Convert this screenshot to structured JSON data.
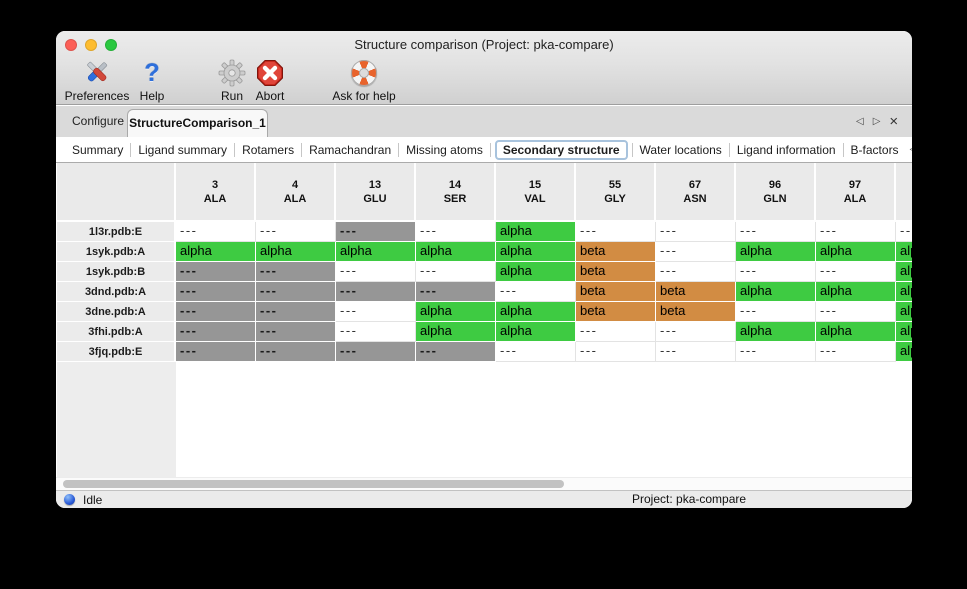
{
  "window": {
    "title": "Structure comparison (Project: pka-compare)"
  },
  "toolbar": {
    "buttons": [
      {
        "label": "Preferences",
        "icon": "tools-icon"
      },
      {
        "label": "Help",
        "icon": "help-icon"
      },
      {
        "label": "Run",
        "icon": "gear-icon"
      },
      {
        "label": "Abort",
        "icon": "abort-icon"
      },
      {
        "label": "Ask for help",
        "icon": "lifebuoy-icon"
      }
    ]
  },
  "tabs": {
    "main": [
      {
        "label": "Configure",
        "selected": false
      },
      {
        "label": "StructureComparison_1",
        "selected": true
      }
    ],
    "controls": {
      "prev": "◁",
      "next": "▷",
      "close": "×"
    },
    "sub": {
      "items": [
        "Summary",
        "Ligand summary",
        "Rotamers",
        "Ramachandran",
        "Missing atoms",
        "Secondary structure",
        "Water locations",
        "Ligand information",
        "B-factors"
      ],
      "selected": "Secondary structure",
      "scroll_prev": "◁",
      "scroll_next": "▷"
    }
  },
  "table": {
    "columns": [
      {
        "num": "3",
        "res": "ALA"
      },
      {
        "num": "4",
        "res": "ALA"
      },
      {
        "num": "13",
        "res": "GLU"
      },
      {
        "num": "14",
        "res": "SER"
      },
      {
        "num": "15",
        "res": "VAL"
      },
      {
        "num": "55",
        "res": "GLY"
      },
      {
        "num": "67",
        "res": "ASN"
      },
      {
        "num": "96",
        "res": "GLN"
      },
      {
        "num": "97",
        "res": "ALA"
      },
      {
        "num": "",
        "res": ""
      }
    ],
    "cell_text": {
      "alpha": "alpha",
      "beta": "beta",
      "blank": "---",
      "missing": "---"
    },
    "rows": [
      {
        "label": "1l3r.pdb:E",
        "cells": [
          "blank",
          "blank",
          "missing",
          "blank",
          "alpha",
          "blank",
          "blank",
          "blank",
          "blank",
          "blank"
        ]
      },
      {
        "label": "1syk.pdb:A",
        "cells": [
          "alpha",
          "alpha",
          "alpha",
          "alpha",
          "alpha",
          "beta",
          "blank",
          "alpha",
          "alpha",
          "alpha"
        ]
      },
      {
        "label": "1syk.pdb:B",
        "cells": [
          "missing",
          "missing",
          "blank",
          "blank",
          "alpha",
          "beta",
          "blank",
          "blank",
          "blank",
          "alpha"
        ]
      },
      {
        "label": "3dnd.pdb:A",
        "cells": [
          "missing",
          "missing",
          "missing",
          "missing",
          "blank",
          "beta",
          "beta",
          "alpha",
          "alpha",
          "alpha"
        ]
      },
      {
        "label": "3dne.pdb:A",
        "cells": [
          "missing",
          "missing",
          "blank",
          "alpha",
          "alpha",
          "beta",
          "beta",
          "blank",
          "blank",
          "alpha"
        ]
      },
      {
        "label": "3fhi.pdb:A",
        "cells": [
          "missing",
          "missing",
          "blank",
          "alpha",
          "alpha",
          "blank",
          "blank",
          "alpha",
          "alpha",
          "alpha"
        ]
      },
      {
        "label": "3fjq.pdb:E",
        "cells": [
          "missing",
          "missing",
          "missing",
          "missing",
          "blank",
          "blank",
          "blank",
          "blank",
          "blank",
          "alpha"
        ]
      }
    ]
  },
  "status_bar": {
    "state": "Idle",
    "project": "Project: pka-compare"
  },
  "colors": {
    "alpha": "#3ecb42",
    "beta": "#d28c43",
    "missing": "#969696",
    "header_bg": "#eaeaea"
  }
}
